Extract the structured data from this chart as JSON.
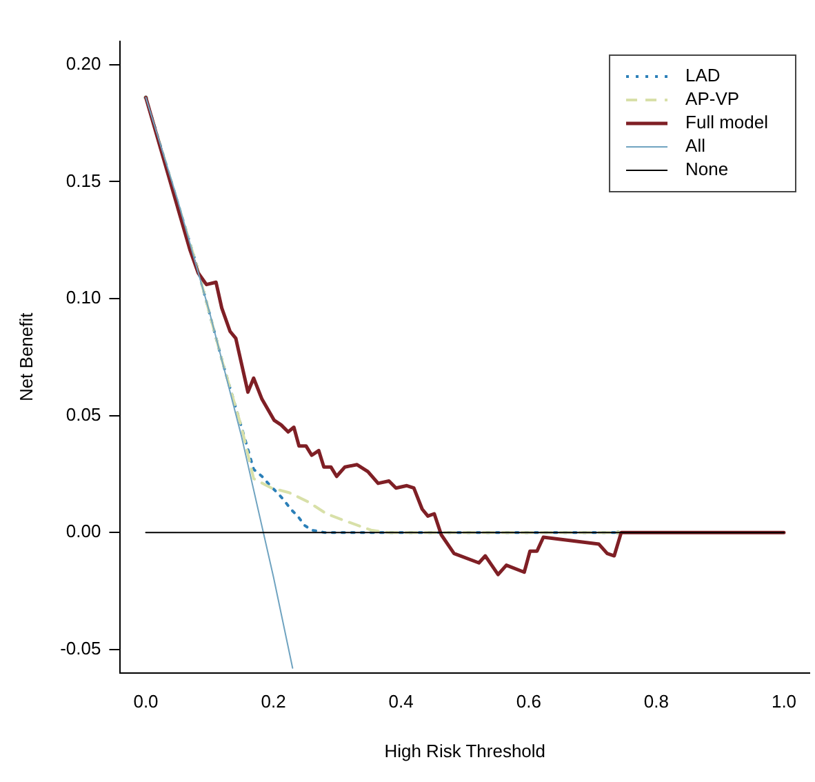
{
  "chart_data": {
    "type": "line",
    "xlabel": "High Risk Threshold",
    "ylabel": "Net Benefit",
    "xlim": [
      -0.04,
      1.04
    ],
    "xticks": [
      {
        "value": 0,
        "label": "0.0"
      },
      {
        "value": 0.2,
        "label": "0.2"
      },
      {
        "value": 0.4,
        "label": "0.4"
      },
      {
        "value": 0.6,
        "label": "0.6"
      },
      {
        "value": 0.8,
        "label": "0.8"
      },
      {
        "value": 1,
        "label": "1.0"
      }
    ],
    "ylim": [
      -0.06,
      0.21
    ],
    "yticks": [
      {
        "value": -0.05,
        "label": "-0.05"
      },
      {
        "value": 0,
        "label": "0.00"
      },
      {
        "value": 0.05,
        "label": "0.05"
      },
      {
        "value": 0.1,
        "label": "0.10"
      },
      {
        "value": 0.15,
        "label": "0.15"
      },
      {
        "value": 0.2,
        "label": "0.20"
      }
    ],
    "grid": false,
    "legend": "top right",
    "marker": "none",
    "series": [
      {
        "name": "LAD",
        "color": "#2b7fb8",
        "line_style": "dotted",
        "x": [
          0,
          0.08,
          0.12,
          0.15,
          0.169,
          0.182,
          0.195,
          0.206,
          0.216,
          0.227,
          0.238,
          0.249,
          0.26,
          0.28,
          0.74
        ],
        "values": [
          0.186,
          0.114,
          0.073,
          0.045,
          0.027,
          0.024,
          0.02,
          0.017,
          0.014,
          0.01,
          0.007,
          0.003,
          0.001,
          0,
          0
        ]
      },
      {
        "name": "AP-VP",
        "color": "#d8e0a8",
        "line_style": "dashed",
        "x": [
          0,
          0.08,
          0.12,
          0.15,
          0.169,
          0.197,
          0.225,
          0.255,
          0.283,
          0.312,
          0.353,
          0.38,
          0.74
        ],
        "values": [
          0.186,
          0.114,
          0.073,
          0.045,
          0.023,
          0.019,
          0.017,
          0.013,
          0.008,
          0.005,
          0.001,
          0,
          0
        ]
      },
      {
        "name": "Full model",
        "color": "#7f1f25",
        "line_style": "solid",
        "x": [
          0,
          0.069,
          0.082,
          0.095,
          0.11,
          0.119,
          0.132,
          0.141,
          0.16,
          0.169,
          0.182,
          0.201,
          0.212,
          0.223,
          0.232,
          0.24,
          0.251,
          0.26,
          0.271,
          0.279,
          0.29,
          0.299,
          0.312,
          0.331,
          0.348,
          0.364,
          0.381,
          0.392,
          0.409,
          0.42,
          0.433,
          0.442,
          0.452,
          0.463,
          0.483,
          0.522,
          0.532,
          0.552,
          0.565,
          0.593,
          0.602,
          0.613,
          0.623,
          0.71,
          0.723,
          0.734,
          0.745,
          0.803,
          1.0
        ],
        "values": [
          0.186,
          0.121,
          0.111,
          0.106,
          0.107,
          0.096,
          0.086,
          0.083,
          0.06,
          0.066,
          0.057,
          0.048,
          0.046,
          0.043,
          0.045,
          0.037,
          0.037,
          0.033,
          0.035,
          0.028,
          0.028,
          0.024,
          0.028,
          0.029,
          0.026,
          0.021,
          0.022,
          0.019,
          0.02,
          0.019,
          0.01,
          0.007,
          0.008,
          -0.001,
          -0.009,
          -0.013,
          -0.01,
          -0.018,
          -0.014,
          -0.017,
          -0.008,
          -0.008,
          -0.002,
          -0.005,
          -0.009,
          -0.01,
          0,
          0,
          0
        ]
      },
      {
        "name": "All",
        "color": "#6fa3c0",
        "line_style": "solid",
        "x": [
          0,
          0.05,
          0.1,
          0.15,
          0.2,
          0.23
        ],
        "values": [
          0.186,
          0.142,
          0.094,
          0.041,
          -0.019,
          -0.058
        ]
      },
      {
        "name": "None",
        "color": "#000000",
        "line_style": "solid",
        "x": [
          0,
          1
        ],
        "values": [
          0,
          0
        ]
      }
    ]
  }
}
